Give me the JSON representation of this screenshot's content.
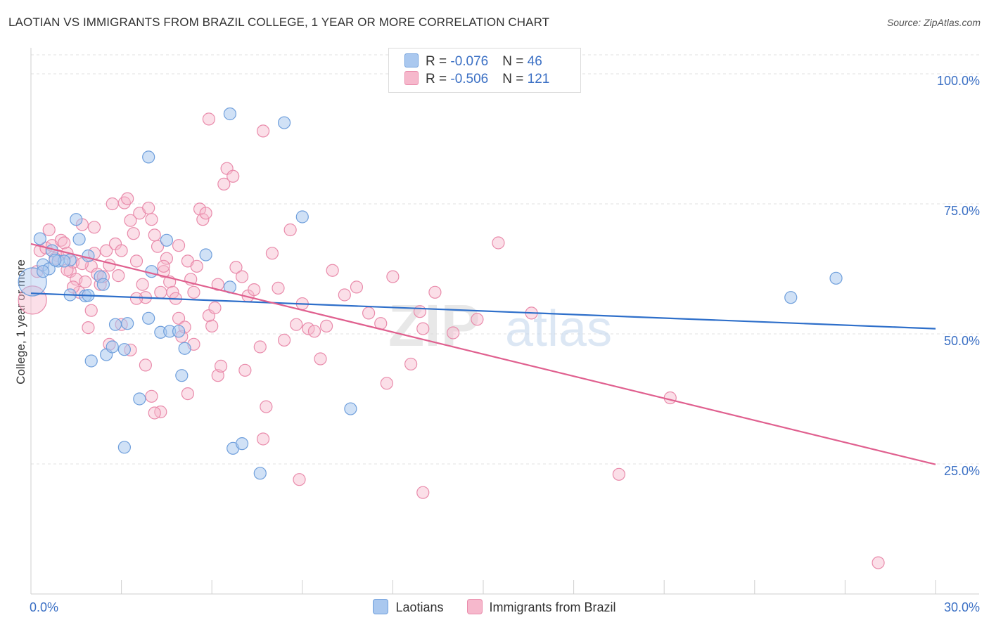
{
  "title": "LAOTIAN VS IMMIGRANTS FROM BRAZIL COLLEGE, 1 YEAR OR MORE CORRELATION CHART",
  "source": "Source: ZipAtlas.com",
  "watermark": {
    "zip": "ZIP",
    "atlas": "atlas"
  },
  "legend_top": {
    "rows": [
      {
        "r_label": "R = ",
        "r_value": "-0.076",
        "n_label": "N = ",
        "n_value": "46"
      },
      {
        "r_label": "R = ",
        "r_value": "-0.506",
        "n_label": "N = ",
        "n_value": "121"
      }
    ]
  },
  "colors": {
    "laotians_fill": "#aac8ef",
    "laotians_stroke": "#6f9fdc",
    "laotians_line": "#2e6fca",
    "brazil_fill": "#f6b8cc",
    "brazil_stroke": "#e98bab",
    "brazil_line": "#e0608f",
    "tick_label": "#3a6fc4",
    "grid": "#e0e0e0"
  },
  "chart_data": {
    "type": "scatter",
    "title": "LAOTIAN VS IMMIGRANTS FROM BRAZIL COLLEGE, 1 YEAR OR MORE CORRELATION CHART",
    "xlabel": "",
    "ylabel": "College, 1 year or more",
    "xlim": [
      0,
      30
    ],
    "ylim": [
      0,
      105
    ],
    "x_tick_labels": [
      "0.0%",
      "30.0%"
    ],
    "y_ticks": [
      25,
      50,
      75,
      100
    ],
    "y_tick_labels": [
      "25.0%",
      "50.0%",
      "75.0%",
      "100.0%"
    ],
    "grid": "horizontal dashed",
    "legend_position": "bottom",
    "series": [
      {
        "name": "Laotians",
        "r": -0.076,
        "n": 46,
        "trend": {
          "x": [
            0,
            30
          ],
          "y": [
            57.8,
            51.0
          ]
        },
        "points": [
          [
            0.05,
            60.0
          ],
          [
            0.3,
            68.3
          ],
          [
            0.4,
            63.3
          ],
          [
            0.7,
            66.0
          ],
          [
            0.9,
            64.0
          ],
          [
            1.3,
            64.2
          ],
          [
            0.6,
            62.5
          ],
          [
            1.1,
            64.0
          ],
          [
            1.5,
            72.0
          ],
          [
            1.6,
            68.2
          ],
          [
            2.3,
            61.0
          ],
          [
            1.9,
            65.0
          ],
          [
            1.8,
            57.3
          ],
          [
            1.3,
            57.5
          ],
          [
            1.9,
            57.4
          ],
          [
            2.0,
            44.8
          ],
          [
            2.5,
            46.0
          ],
          [
            2.7,
            47.5
          ],
          [
            2.8,
            51.8
          ],
          [
            3.1,
            47.0
          ],
          [
            3.2,
            52.0
          ],
          [
            3.9,
            53.0
          ],
          [
            4.0,
            62.0
          ],
          [
            4.3,
            50.3
          ],
          [
            4.6,
            50.5
          ],
          [
            4.9,
            50.5
          ],
          [
            5.0,
            42.0
          ],
          [
            5.1,
            47.2
          ],
          [
            5.8,
            65.2
          ],
          [
            6.6,
            59.0
          ],
          [
            3.9,
            84.0
          ],
          [
            4.5,
            68.0
          ],
          [
            3.6,
            37.5
          ],
          [
            3.1,
            28.2
          ],
          [
            6.7,
            28.0
          ],
          [
            7.0,
            28.9
          ],
          [
            7.6,
            23.2
          ],
          [
            6.6,
            92.3
          ],
          [
            8.4,
            90.6
          ],
          [
            9.0,
            72.5
          ],
          [
            10.6,
            35.6
          ],
          [
            25.2,
            57.0
          ],
          [
            26.7,
            60.7
          ],
          [
            0.4,
            62.0
          ],
          [
            0.8,
            64.2
          ],
          [
            2.4,
            59.5
          ]
        ]
      },
      {
        "name": "Immigrants from Brazil",
        "r": -0.506,
        "n": 121,
        "trend": {
          "x": [
            0,
            30
          ],
          "y": [
            67.3,
            24.9
          ]
        },
        "points": [
          [
            0.05,
            56.5
          ],
          [
            0.2,
            62.0
          ],
          [
            0.3,
            66.0
          ],
          [
            0.5,
            66.5
          ],
          [
            0.6,
            70.0
          ],
          [
            0.7,
            67.0
          ],
          [
            0.9,
            65.0
          ],
          [
            1.0,
            68.0
          ],
          [
            1.1,
            67.5
          ],
          [
            1.2,
            65.5
          ],
          [
            1.3,
            62.0
          ],
          [
            1.4,
            63.8
          ],
          [
            1.5,
            60.5
          ],
          [
            1.6,
            58.0
          ],
          [
            1.7,
            71.0
          ],
          [
            1.8,
            60.0
          ],
          [
            2.0,
            63.0
          ],
          [
            2.1,
            65.5
          ],
          [
            2.2,
            61.5
          ],
          [
            2.3,
            59.5
          ],
          [
            2.4,
            61.0
          ],
          [
            2.5,
            66.0
          ],
          [
            2.6,
            63.2
          ],
          [
            2.7,
            75.0
          ],
          [
            2.8,
            67.3
          ],
          [
            2.9,
            61.2
          ],
          [
            3.0,
            51.8
          ],
          [
            3.1,
            75.2
          ],
          [
            3.2,
            76.0
          ],
          [
            3.3,
            71.8
          ],
          [
            3.4,
            69.3
          ],
          [
            3.5,
            64.0
          ],
          [
            3.6,
            73.2
          ],
          [
            3.7,
            59.5
          ],
          [
            3.8,
            57.0
          ],
          [
            3.9,
            74.2
          ],
          [
            4.0,
            72.0
          ],
          [
            4.1,
            69.0
          ],
          [
            4.2,
            66.8
          ],
          [
            4.3,
            58.0
          ],
          [
            4.4,
            62.0
          ],
          [
            4.5,
            64.5
          ],
          [
            4.6,
            60.0
          ],
          [
            4.7,
            58.0
          ],
          [
            4.8,
            56.8
          ],
          [
            4.9,
            53.0
          ],
          [
            5.0,
            49.5
          ],
          [
            5.1,
            51.3
          ],
          [
            5.2,
            64.0
          ],
          [
            5.3,
            60.5
          ],
          [
            5.4,
            58.0
          ],
          [
            5.5,
            63.0
          ],
          [
            5.6,
            74.0
          ],
          [
            5.7,
            72.0
          ],
          [
            5.8,
            73.2
          ],
          [
            5.9,
            53.5
          ],
          [
            6.0,
            51.5
          ],
          [
            6.1,
            55.0
          ],
          [
            6.2,
            42.0
          ],
          [
            6.3,
            43.8
          ],
          [
            6.4,
            78.8
          ],
          [
            6.5,
            81.8
          ],
          [
            6.7,
            80.3
          ],
          [
            6.8,
            62.8
          ],
          [
            7.0,
            61.0
          ],
          [
            7.2,
            57.3
          ],
          [
            7.4,
            58.5
          ],
          [
            7.6,
            47.5
          ],
          [
            7.8,
            36.0
          ],
          [
            8.0,
            65.5
          ],
          [
            8.2,
            58.8
          ],
          [
            8.4,
            48.8
          ],
          [
            8.6,
            70.0
          ],
          [
            9.0,
            55.8
          ],
          [
            9.2,
            51.0
          ],
          [
            9.4,
            50.5
          ],
          [
            9.6,
            45.2
          ],
          [
            10.0,
            62.2
          ],
          [
            10.4,
            57.5
          ],
          [
            10.8,
            59.0
          ],
          [
            11.2,
            54.0
          ],
          [
            11.6,
            52.0
          ],
          [
            12.0,
            61.0
          ],
          [
            12.6,
            44.2
          ],
          [
            13.0,
            51.0
          ],
          [
            13.4,
            58.0
          ],
          [
            14.0,
            50.2
          ],
          [
            14.8,
            52.8
          ],
          [
            15.5,
            67.5
          ],
          [
            16.6,
            54.0
          ],
          [
            21.2,
            37.7
          ],
          [
            19.5,
            23.0
          ],
          [
            28.1,
            6.0
          ],
          [
            13.0,
            19.5
          ],
          [
            8.9,
            22.0
          ],
          [
            7.7,
            29.8
          ],
          [
            5.9,
            91.3
          ],
          [
            7.7,
            89.0
          ],
          [
            3.3,
            46.9
          ],
          [
            4.0,
            38.0
          ],
          [
            4.3,
            35.0
          ],
          [
            4.1,
            34.8
          ],
          [
            2.0,
            54.5
          ],
          [
            1.9,
            51.2
          ],
          [
            1.4,
            59.0
          ],
          [
            1.2,
            62.3
          ],
          [
            0.8,
            64.5
          ],
          [
            2.6,
            48.0
          ],
          [
            3.5,
            56.8
          ],
          [
            5.2,
            38.5
          ],
          [
            6.2,
            59.5
          ],
          [
            5.4,
            48.0
          ],
          [
            3.8,
            44.0
          ],
          [
            4.9,
            67.0
          ],
          [
            9.8,
            51.5
          ],
          [
            11.8,
            40.5
          ],
          [
            3.0,
            66.0
          ],
          [
            2.1,
            70.5
          ],
          [
            8.8,
            51.8
          ],
          [
            1.7,
            63.5
          ],
          [
            4.4,
            63.0
          ],
          [
            7.1,
            43.0
          ],
          [
            12.9,
            54.3
          ]
        ]
      }
    ]
  },
  "legend_bottom": [
    "Laotians",
    "Immigrants from Brazil"
  ]
}
